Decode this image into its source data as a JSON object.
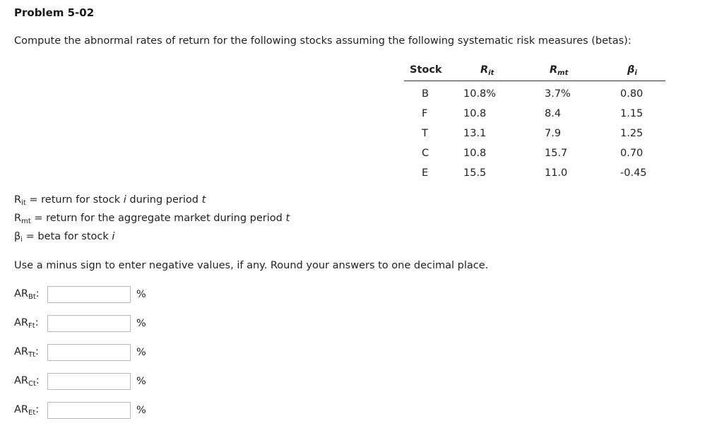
{
  "title": "Problem 5-02",
  "intro": "Compute the abnormal rates of return for the following stocks assuming the following systematic risk measures (betas):",
  "table": {
    "headers": {
      "stock": "Stock",
      "rit": {
        "main": "R",
        "sub": "it"
      },
      "rmt": {
        "main": "R",
        "sub": "mt"
      },
      "beta": {
        "main": "β",
        "sub": "i"
      }
    },
    "rows": [
      {
        "stock": "B",
        "rit": "10.8%",
        "rmt": "3.7%",
        "beta": "0.80"
      },
      {
        "stock": "F",
        "rit": "10.8",
        "rmt": "8.4",
        "beta": "1.15"
      },
      {
        "stock": "T",
        "rit": "13.1",
        "rmt": "7.9",
        "beta": "1.25"
      },
      {
        "stock": "C",
        "rit": "10.8",
        "rmt": "15.7",
        "beta": "0.70"
      },
      {
        "stock": "E",
        "rit": "15.5",
        "rmt": "11.0",
        "beta": "-0.45"
      }
    ]
  },
  "definitions": [
    {
      "sym": "R",
      "sub": "it",
      "pre": " = return for stock ",
      "var": "i",
      "post": " during period ",
      "var2": "t"
    },
    {
      "sym": "R",
      "sub": "mt",
      "pre": " = return for the aggregate market during period ",
      "var": "t",
      "post": "",
      "var2": ""
    },
    {
      "sym": "β",
      "sub": "i",
      "pre": " = beta for stock ",
      "var": "i",
      "post": "",
      "var2": ""
    }
  ],
  "instructions": "Use a minus sign to enter negative values, if any. Round your answers to one decimal place.",
  "answers": [
    {
      "prefix": "AR",
      "sub": "Bt",
      "colon": ":",
      "value": "",
      "unit": "%"
    },
    {
      "prefix": "AR",
      "sub": "Ft",
      "colon": ":",
      "value": "",
      "unit": "%"
    },
    {
      "prefix": "AR",
      "sub": "Tt",
      "colon": ":",
      "value": "",
      "unit": "%"
    },
    {
      "prefix": "AR",
      "sub": "Ct",
      "colon": ":",
      "value": "",
      "unit": "%"
    },
    {
      "prefix": "AR",
      "sub": "Et",
      "colon": ":",
      "value": "",
      "unit": "%"
    }
  ]
}
